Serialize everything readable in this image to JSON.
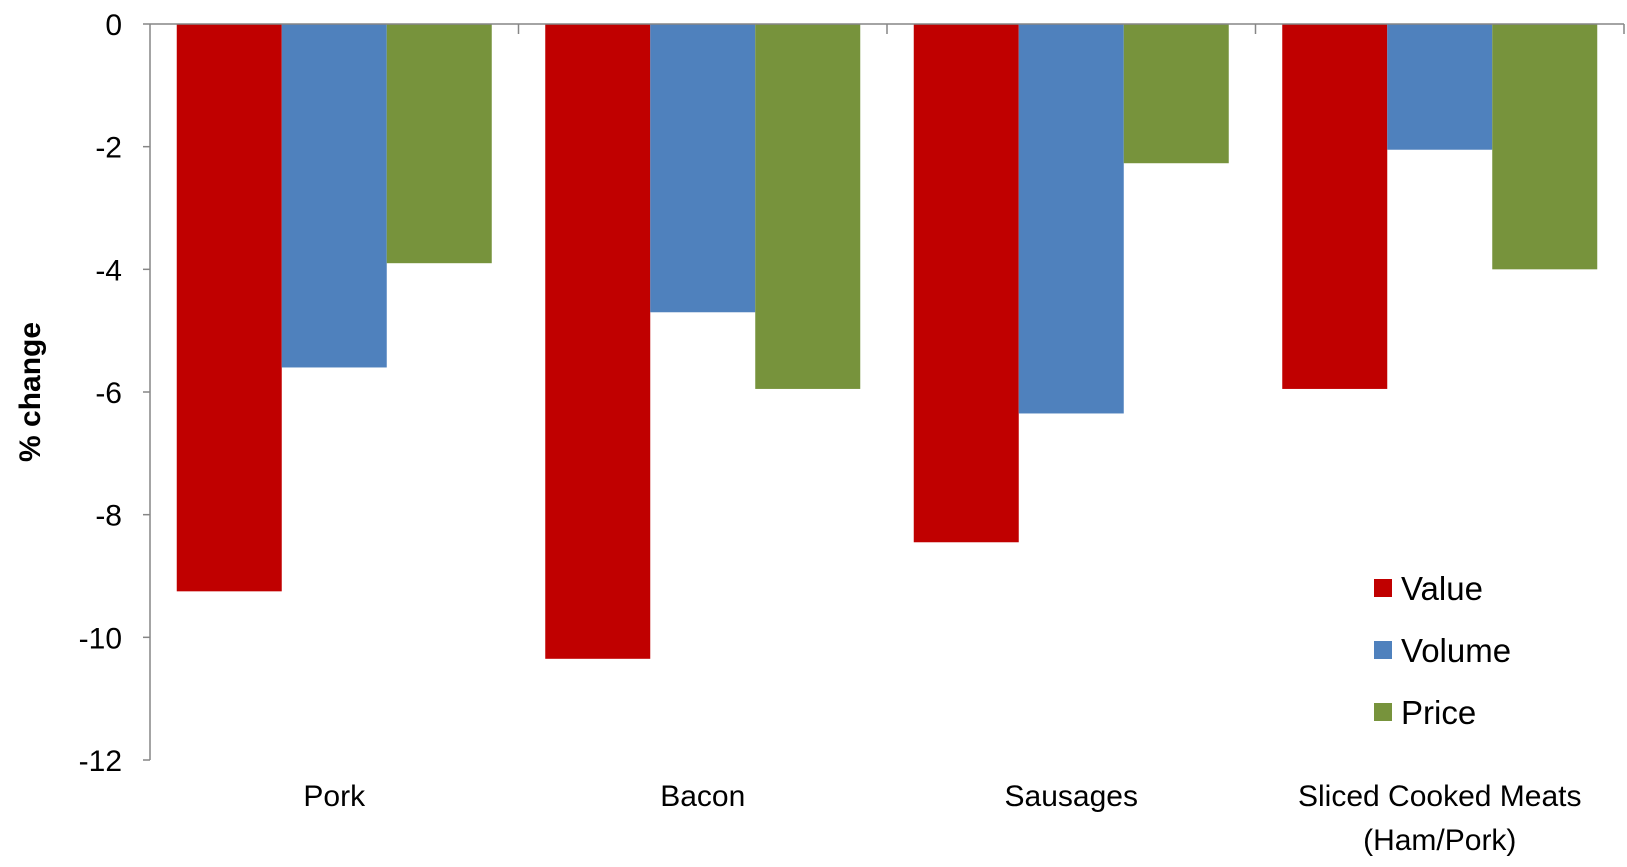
{
  "chart_data": {
    "type": "bar",
    "title": "",
    "xlabel": "",
    "ylabel": "% change",
    "ylim": [
      -12,
      0
    ],
    "yticks": [
      0,
      -2,
      -4,
      -6,
      -8,
      -10,
      -12
    ],
    "grid": false,
    "legend_position": "bottom-right",
    "categories": [
      [
        "Pork"
      ],
      [
        "Bacon"
      ],
      [
        "Sausages"
      ],
      [
        "Sliced Cooked Meats",
        "(Ham/Pork)"
      ]
    ],
    "series": [
      {
        "name": "Value",
        "color": "#c00000",
        "values": [
          -9.25,
          -10.35,
          -8.45,
          -5.95
        ]
      },
      {
        "name": "Volume",
        "color": "#4f81bd",
        "values": [
          -5.6,
          -4.7,
          -6.35,
          -2.05
        ]
      },
      {
        "name": "Price",
        "color": "#77933c",
        "values": [
          -3.9,
          -5.95,
          -2.27,
          -4.0
        ]
      }
    ]
  }
}
